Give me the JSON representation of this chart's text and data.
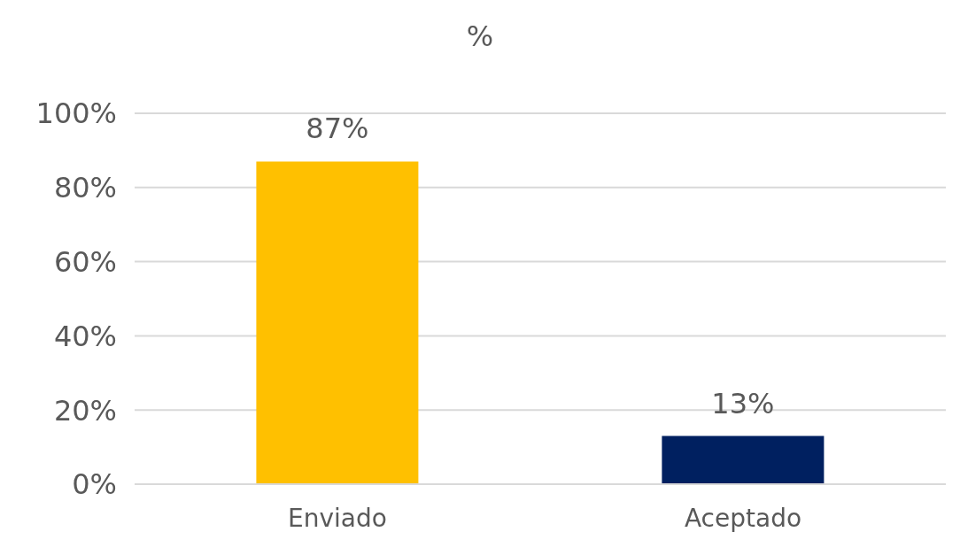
{
  "chart_data": {
    "type": "bar",
    "title": "%",
    "categories": [
      "Enviado",
      "Aceptado"
    ],
    "values": [
      87,
      13
    ],
    "colors": [
      "#ffc000",
      "#002060"
    ],
    "value_labels": [
      "87%",
      "13%"
    ],
    "ylim": [
      0,
      100
    ],
    "yticks": [
      {
        "value": 0,
        "label": "0%"
      },
      {
        "value": 20,
        "label": "20%"
      },
      {
        "value": 40,
        "label": "40%"
      },
      {
        "value": 60,
        "label": "60%"
      },
      {
        "value": 80,
        "label": "80%"
      },
      {
        "value": 100,
        "label": "100%"
      }
    ],
    "grid": "y"
  }
}
